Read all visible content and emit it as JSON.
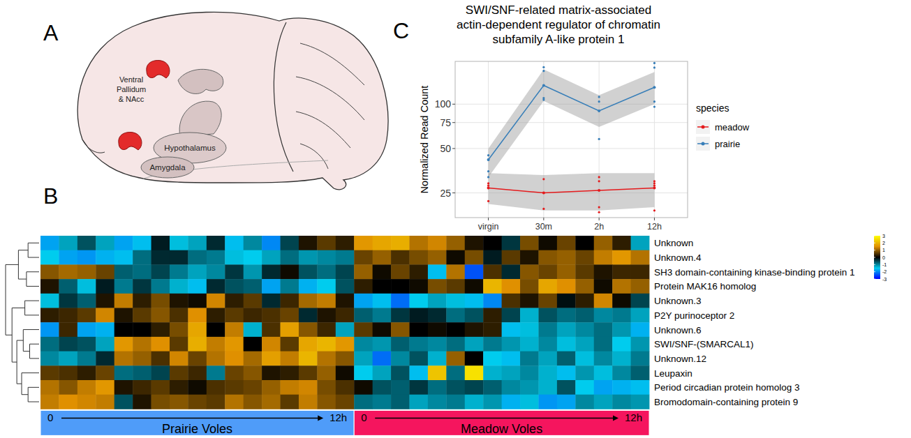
{
  "diagram": {
    "panel": "A",
    "labels": [
      "Ventral Pallidum & NAcc",
      "Hypothalamus",
      "Amygdala"
    ]
  },
  "chart_data": [
    {
      "type": "line",
      "panel": "C",
      "title": "SWI/SNF-related matrix-associated actin-dependent regulator of chromatin subfamily A-like protein 1",
      "y_label": "Normalized Read Count",
      "categories": [
        "virgin",
        "30m",
        "2h",
        "12h"
      ],
      "ylim": [
        17,
        195
      ],
      "yticks": [
        25,
        50,
        75,
        100
      ],
      "log": "y",
      "grid": true,
      "legend": "right",
      "legend_title": "species",
      "marker": "circle",
      "series": [
        {
          "name": "meadow",
          "color": "#e41a1c",
          "values": [
            27,
            25,
            26,
            27
          ],
          "lower": [
            21,
            19,
            19,
            20
          ],
          "upper": [
            34,
            33,
            34,
            34
          ],
          "points": [
            [
              29,
              28,
              27,
              22
            ],
            [
              31,
              25,
              19.5
            ],
            [
              32,
              30,
              20,
              18.5
            ],
            [
              30,
              29,
              28,
              19
            ]
          ]
        },
        {
          "name": "prairie",
          "color": "#377eb8",
          "values": [
            42,
            134,
            90,
            130
          ],
          "lower": [
            32,
            105,
            70,
            100
          ],
          "upper": [
            50,
            172,
            115,
            165
          ],
          "points": [
            [
              45,
              42,
              35,
              32
            ],
            [
              178,
              168,
              110,
              107
            ],
            [
              112,
              104,
              58
            ],
            [
              190,
              177,
              104,
              96
            ]
          ]
        }
      ]
    },
    {
      "type": "heatmap",
      "panel": "B",
      "rows": [
        "Unknown",
        "Unknown.4",
        "SH3 domain-containing kinase-binding protein 1",
        "Protein MAK16 homolog",
        "Unknown.3",
        "P2Y purinoceptor 2",
        "Unknown.6",
        "SWI/SNF-(SMARCAL1)",
        "Unknown.12",
        "Leupaxin",
        "Period circadian protein homolog 3",
        "Bromodomain-containing protein 9"
      ],
      "groups": [
        {
          "name": "Prairie Voles",
          "color": "#4f9cf9",
          "start_label": "0",
          "end_label": "12h",
          "cells": [
            [
              -1.8,
              -1.2,
              -0.6,
              -1.2,
              -1.8,
              -1.6,
              -0.2,
              -1.4,
              -1.2,
              -0.3,
              -1.6,
              -1.0,
              -2.0,
              -0.5,
              0.2,
              0.6,
              0.3
            ],
            [
              -1.5,
              -1.8,
              -1.9,
              -1.7,
              -1.6,
              -0.8,
              -0.3,
              -0.3,
              -0.8,
              -0.9,
              -1.4,
              -1.5,
              -1.2,
              -0.8,
              -1.1,
              -1.0,
              -0.9
            ],
            [
              0.9,
              1.1,
              1.0,
              0.7,
              -0.7,
              -0.8,
              -0.5,
              -0.9,
              -1.2,
              -1.0,
              -0.4,
              -1.1,
              -0.3,
              0.1,
              -0.6,
              -0.8,
              -0.5
            ],
            [
              0.2,
              -0.7,
              -1.4,
              -0.2,
              -0.9,
              -0.4,
              -0.9,
              -1.3,
              -1.6,
              -0.3,
              -0.6,
              -0.7,
              -1.8,
              -0.9,
              -1.7,
              -1.5,
              -0.6
            ],
            [
              -1.4,
              -0.4,
              -0.7,
              0.2,
              1.3,
              0.3,
              0.8,
              0.2,
              0.1,
              1.4,
              0.3,
              0.6,
              -0.3,
              0.4,
              1.1,
              1.3,
              0.2
            ],
            [
              0.3,
              0.4,
              0.6,
              1.4,
              0.2,
              0.6,
              0.9,
              0.5,
              1.5,
              0.3,
              0.6,
              0.4,
              0.5,
              0.7,
              -0.3,
              0.2,
              0.4
            ],
            [
              -1.9,
              0.4,
              -1.8,
              -1.7,
              0,
              0,
              0.3,
              0.8,
              1.8,
              0,
              1.3,
              -1.3,
              0.5,
              1.7,
              0.9,
              0.4,
              -1.2
            ],
            [
              -0.8,
              -0.5,
              -0.6,
              -1.2,
              1.6,
              1.2,
              1.5,
              0.6,
              1.9,
              1.3,
              1.6,
              0,
              1.4,
              0.6,
              1.8,
              2.0,
              1.6
            ],
            [
              -1.0,
              -1.2,
              -0.9,
              -0.3,
              1.2,
              1.0,
              0.5,
              1.4,
              0.7,
              1.2,
              1.5,
              1.1,
              1.7,
              1.3,
              2.0,
              1.2,
              0.9
            ],
            [
              0.6,
              0.5,
              0.3,
              0.7,
              -0.8,
              -0.7,
              -0.5,
              0.6,
              0.4,
              -0.9,
              0.7,
              0.9,
              0.2,
              0.3,
              0.6,
              1.0,
              0.1
            ],
            [
              1.2,
              0.9,
              1.3,
              1.6,
              0.2,
              0.4,
              0.6,
              0.3,
              0.1,
              0.5,
              0.6,
              0.7,
              1.0,
              1.3,
              1.4,
              0.8,
              0.5
            ],
            [
              1.3,
              1.5,
              1.4,
              1.3,
              -0.6,
              0.2,
              0.8,
              0.9,
              0.7,
              0.6,
              1.2,
              0.9,
              1.1,
              0.6,
              1.3,
              0.9,
              0.7
            ]
          ]
        },
        {
          "name": "Meadow Voles",
          "color": "#f5155e",
          "start_label": "0",
          "end_label": "12h",
          "cells": [
            [
              1.6,
              1.8,
              1.9,
              1.2,
              1.4,
              1.0,
              0.2,
              0,
              -0.4,
              0.8,
              0.1,
              0.7,
              0,
              1.0,
              0.3,
              -1.2
            ],
            [
              0.7,
              1.0,
              0.5,
              0.8,
              1.0,
              0.1,
              0.8,
              -0.2,
              0.6,
              0.2,
              0.9,
              1.0,
              0.7,
              1.3,
              1.6,
              1.2
            ],
            [
              1.0,
              0.1,
              0.7,
              0.3,
              -1.6,
              1.2,
              -2.4,
              0.5,
              -0.3,
              0.9,
              0.7,
              1.0,
              0.6,
              0.2,
              0.4,
              0.4
            ],
            [
              0.3,
              0,
              0,
              0.1,
              0.8,
              0.6,
              0.1,
              2.0,
              1.5,
              0.8,
              1.8,
              1.5,
              1.0,
              0.1,
              1.2,
              1.0
            ],
            [
              -1.8,
              -1.6,
              -2.2,
              -1.5,
              -1.2,
              -1.4,
              -1.6,
              -2.0,
              0.5,
              0.2,
              0.7,
              -0.1,
              0.3,
              1.4,
              0.1,
              -0.5
            ],
            [
              -0.7,
              -0.9,
              -0.4,
              -0.2,
              -0.3,
              -0.8,
              -0.6,
              0.3,
              -0.5,
              -1.3,
              -0.6,
              -0.8,
              -0.7,
              -1.0,
              -0.9,
              -1.2
            ],
            [
              0.6,
              0.1,
              0.9,
              0,
              0.1,
              0,
              0.2,
              0.3,
              -1.6,
              -1.4,
              -0.9,
              -1.2,
              -1.0,
              -0.8,
              -1.1,
              -1.7
            ],
            [
              -1.0,
              -1.1,
              -0.7,
              -0.9,
              -1.0,
              -0.8,
              -1.2,
              -0.9,
              -1.1,
              -1.3,
              -1.0,
              -1.4,
              -1.2,
              -0.8,
              -1.5,
              -1.1
            ],
            [
              -1.2,
              -2.2,
              -1.0,
              -0.6,
              -1.3,
              1.0,
              0,
              -1.5,
              -1.6,
              -0.9,
              -1.2,
              -0.7,
              -1.4,
              -1.0,
              -1.3,
              -0.9
            ],
            [
              -1.5,
              -1.2,
              -0.6,
              -1.6,
              2.2,
              -0.8,
              2.6,
              -1.3,
              -1.2,
              -1.0,
              -1.3,
              -1.6,
              -1.1,
              -1.4,
              -1.0,
              -0.7
            ],
            [
              0.1,
              -0.6,
              -0.7,
              -0.4,
              -0.8,
              -0.6,
              -0.5,
              -0.7,
              -1.0,
              -1.1,
              -1.3,
              -0.6,
              -1.5,
              -1.8,
              -1.7,
              -1.6
            ],
            [
              -0.8,
              -0.9,
              -0.7,
              -1.2,
              -1.0,
              -0.9,
              -1.3,
              -1.1,
              -1.7,
              -1.4,
              -1.9,
              -1.8,
              -1.0,
              -1.2,
              -1.0,
              -1.1
            ]
          ]
        }
      ],
      "colorbar": {
        "range": [
          -3,
          3
        ],
        "ticks": [
          -3,
          -2,
          -1,
          0,
          1,
          2,
          3
        ]
      }
    }
  ]
}
